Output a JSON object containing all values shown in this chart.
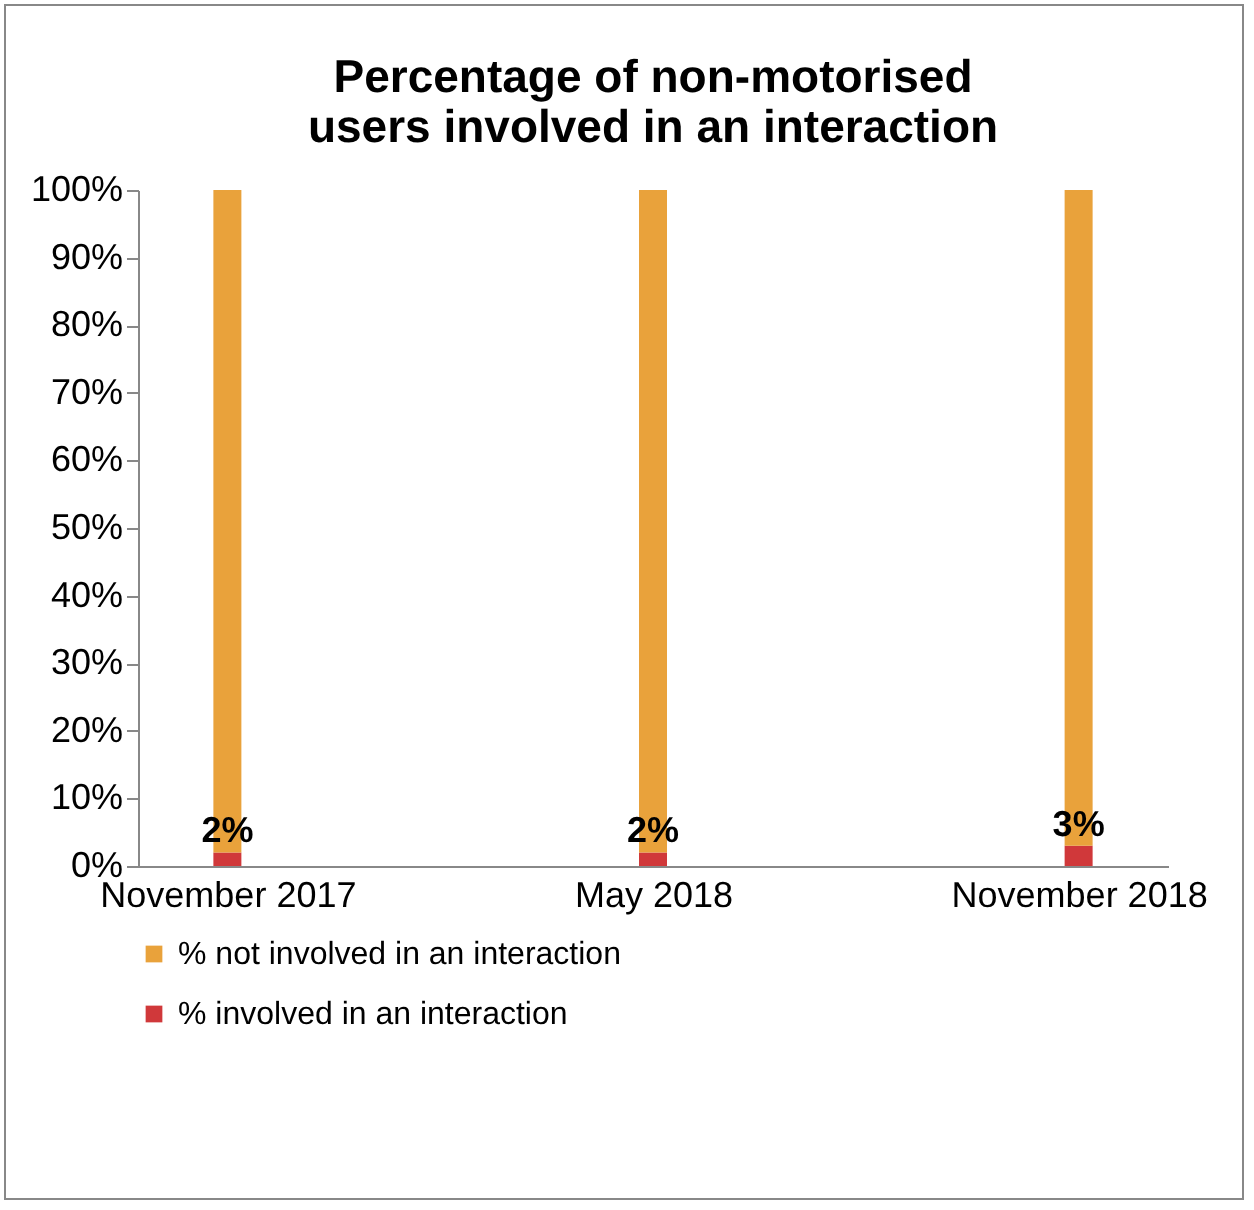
{
  "chart_data": {
    "type": "bar",
    "title": "Percentage of non-motorised users involved in an interaction",
    "categories": [
      "November 2017",
      "May 2018",
      "November 2018"
    ],
    "stacked": true,
    "series": [
      {
        "name": "% involved in an interaction",
        "color": "#d0383a",
        "values": [
          2,
          2,
          3
        ],
        "value_labels": [
          "2%",
          "2%",
          "3%"
        ]
      },
      {
        "name": "% not involved in an interaction",
        "color": "#e9a23b",
        "values": [
          98,
          98,
          97
        ]
      }
    ],
    "ylim": [
      0,
      100
    ],
    "yticks": [
      {
        "value": 0,
        "label": "0%"
      },
      {
        "value": 10,
        "label": "10%"
      },
      {
        "value": 20,
        "label": "20%"
      },
      {
        "value": 30,
        "label": "30%"
      },
      {
        "value": 40,
        "label": "40%"
      },
      {
        "value": 50,
        "label": "50%"
      },
      {
        "value": 60,
        "label": "60%"
      },
      {
        "value": 70,
        "label": "70%"
      },
      {
        "value": 80,
        "label": "80%"
      },
      {
        "value": 90,
        "label": "90%"
      },
      {
        "value": 100,
        "label": "100%"
      }
    ],
    "grid": false,
    "legend": "bottom"
  }
}
